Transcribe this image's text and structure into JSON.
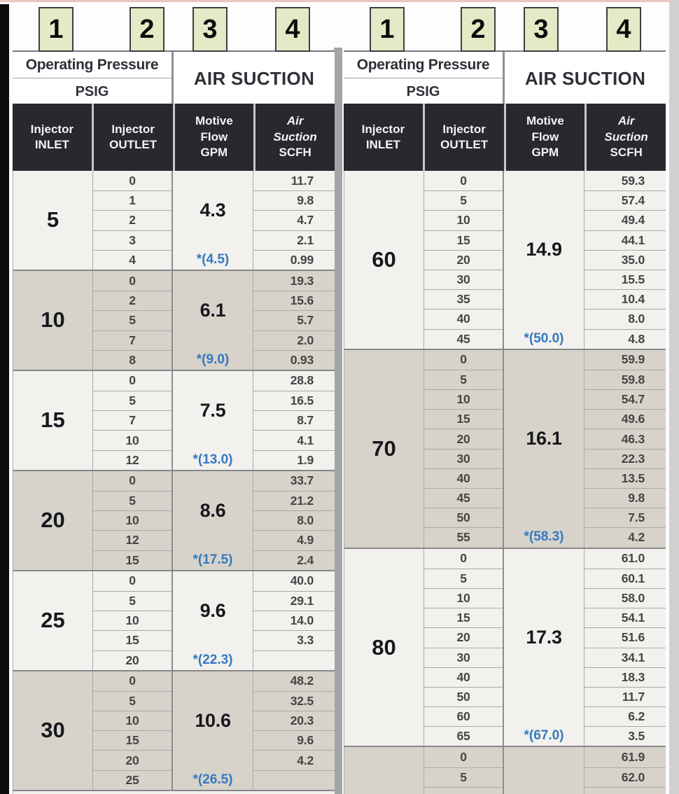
{
  "colors": {
    "badge_bg": "#e3eac6",
    "badge_border": "#3d3f45",
    "dark_header_bg": "#27292f",
    "starred_value_blue": "#3579bf",
    "group_shade_light": "#f2f1ee",
    "group_shade_dark": "#d7d3cb",
    "divider_gray": "#a2a4a7"
  },
  "tables": [
    {
      "id": "left",
      "badges": [
        "1",
        "2",
        "3",
        "4"
      ],
      "header": {
        "operating_pressure": "Operating Pressure",
        "psig": "PSIG",
        "air_suction": "AIR SUCTION",
        "columns": [
          {
            "lines": [
              {
                "t": "Injector",
                "i": false
              },
              {
                "t": "INLET",
                "i": false
              }
            ]
          },
          {
            "lines": [
              {
                "t": "Injector",
                "i": false
              },
              {
                "t": "OUTLET",
                "i": false
              }
            ]
          },
          {
            "lines": [
              {
                "t": "Motive",
                "i": false
              },
              {
                "t": "Flow",
                "i": false
              },
              {
                "t": "GPM",
                "i": false
              }
            ]
          },
          {
            "lines": [
              {
                "t": "Air",
                "i": true
              },
              {
                "t": "Suction",
                "i": true
              },
              {
                "t": "SCFH",
                "i": false
              }
            ]
          }
        ]
      },
      "groups": [
        {
          "inlet": "5",
          "shade": "light",
          "motive_flow": "4.3",
          "max_flow": "*(4.5)",
          "rows": [
            {
              "outlet": "0",
              "scfh": "11.7"
            },
            {
              "outlet": "1",
              "scfh": "9.8"
            },
            {
              "outlet": "2",
              "scfh": "4.7"
            },
            {
              "outlet": "3",
              "scfh": "2.1"
            },
            {
              "outlet": "4",
              "scfh": "0.99"
            }
          ]
        },
        {
          "inlet": "10",
          "shade": "dark",
          "motive_flow": "6.1",
          "max_flow": "*(9.0)",
          "rows": [
            {
              "outlet": "0",
              "scfh": "19.3"
            },
            {
              "outlet": "2",
              "scfh": "15.6"
            },
            {
              "outlet": "5",
              "scfh": "5.7"
            },
            {
              "outlet": "7",
              "scfh": "2.0"
            },
            {
              "outlet": "8",
              "scfh": "0.93"
            }
          ]
        },
        {
          "inlet": "15",
          "shade": "light",
          "motive_flow": "7.5",
          "max_flow": "*(13.0)",
          "rows": [
            {
              "outlet": "0",
              "scfh": "28.8"
            },
            {
              "outlet": "5",
              "scfh": "16.5"
            },
            {
              "outlet": "7",
              "scfh": "8.7"
            },
            {
              "outlet": "10",
              "scfh": "4.1"
            },
            {
              "outlet": "12",
              "scfh": "1.9"
            }
          ]
        },
        {
          "inlet": "20",
          "shade": "dark",
          "motive_flow": "8.6",
          "max_flow": "*(17.5)",
          "rows": [
            {
              "outlet": "0",
              "scfh": "33.7"
            },
            {
              "outlet": "5",
              "scfh": "21.2"
            },
            {
              "outlet": "10",
              "scfh": "8.0"
            },
            {
              "outlet": "12",
              "scfh": "4.9"
            },
            {
              "outlet": "15",
              "scfh": "2.4"
            }
          ]
        },
        {
          "inlet": "25",
          "shade": "light",
          "motive_flow": "9.6",
          "max_flow": "*(22.3)",
          "rows": [
            {
              "outlet": "0",
              "scfh": "40.0"
            },
            {
              "outlet": "5",
              "scfh": "29.1"
            },
            {
              "outlet": "10",
              "scfh": "14.0"
            },
            {
              "outlet": "15",
              "scfh": "3.3"
            },
            {
              "outlet": "20",
              "scfh": ""
            }
          ]
        },
        {
          "inlet": "30",
          "shade": "dark",
          "motive_flow": "10.6",
          "max_flow": "*(26.5)",
          "rows": [
            {
              "outlet": "0",
              "scfh": "48.2"
            },
            {
              "outlet": "5",
              "scfh": "32.5"
            },
            {
              "outlet": "10",
              "scfh": "20.3"
            },
            {
              "outlet": "15",
              "scfh": "9.6"
            },
            {
              "outlet": "20",
              "scfh": "4.2"
            },
            {
              "outlet": "25",
              "scfh": ""
            }
          ]
        }
      ],
      "bottom_sliver": "light"
    },
    {
      "id": "right",
      "badges": [
        "1",
        "2",
        "3",
        "4"
      ],
      "header": {
        "operating_pressure": "Operating Pressure",
        "psig": "PSIG",
        "air_suction": "AIR SUCTION",
        "columns": [
          {
            "lines": [
              {
                "t": "Injector",
                "i": false
              },
              {
                "t": "INLET",
                "i": false
              }
            ]
          },
          {
            "lines": [
              {
                "t": "Injector",
                "i": false
              },
              {
                "t": "OUTLET",
                "i": false
              }
            ]
          },
          {
            "lines": [
              {
                "t": "Motive",
                "i": false
              },
              {
                "t": "Flow",
                "i": false
              },
              {
                "t": "GPM",
                "i": false
              }
            ]
          },
          {
            "lines": [
              {
                "t": "Air",
                "i": true
              },
              {
                "t": "Suction",
                "i": true
              },
              {
                "t": "SCFH",
                "i": false
              }
            ]
          }
        ]
      },
      "groups": [
        {
          "inlet": "60",
          "shade": "light",
          "motive_flow": "14.9",
          "max_flow": "*(50.0)",
          "rows": [
            {
              "outlet": "0",
              "scfh": "59.3"
            },
            {
              "outlet": "5",
              "scfh": "57.4"
            },
            {
              "outlet": "10",
              "scfh": "49.4"
            },
            {
              "outlet": "15",
              "scfh": "44.1"
            },
            {
              "outlet": "20",
              "scfh": "35.0"
            },
            {
              "outlet": "30",
              "scfh": "15.5"
            },
            {
              "outlet": "35",
              "scfh": "10.4"
            },
            {
              "outlet": "40",
              "scfh": "8.0"
            },
            {
              "outlet": "45",
              "scfh": "4.8"
            }
          ]
        },
        {
          "inlet": "70",
          "shade": "dark",
          "motive_flow": "16.1",
          "max_flow": "*(58.3)",
          "rows": [
            {
              "outlet": "0",
              "scfh": "59.9"
            },
            {
              "outlet": "5",
              "scfh": "59.8"
            },
            {
              "outlet": "10",
              "scfh": "54.7"
            },
            {
              "outlet": "15",
              "scfh": "49.6"
            },
            {
              "outlet": "20",
              "scfh": "46.3"
            },
            {
              "outlet": "30",
              "scfh": "22.3"
            },
            {
              "outlet": "40",
              "scfh": "13.5"
            },
            {
              "outlet": "45",
              "scfh": "9.8"
            },
            {
              "outlet": "50",
              "scfh": "7.5"
            },
            {
              "outlet": "55",
              "scfh": "4.2"
            }
          ]
        },
        {
          "inlet": "80",
          "shade": "light",
          "motive_flow": "17.3",
          "max_flow": "*(67.0)",
          "rows": [
            {
              "outlet": "0",
              "scfh": "61.0"
            },
            {
              "outlet": "5",
              "scfh": "60.1"
            },
            {
              "outlet": "10",
              "scfh": "58.0"
            },
            {
              "outlet": "15",
              "scfh": "54.1"
            },
            {
              "outlet": "20",
              "scfh": "51.6"
            },
            {
              "outlet": "30",
              "scfh": "34.1"
            },
            {
              "outlet": "40",
              "scfh": "18.3"
            },
            {
              "outlet": "50",
              "scfh": "11.7"
            },
            {
              "outlet": "60",
              "scfh": "6.2"
            },
            {
              "outlet": "65",
              "scfh": "3.5"
            }
          ]
        },
        {
          "inlet": "",
          "shade": "dark",
          "motive_flow": "",
          "max_flow": "",
          "cut": true,
          "rows": [
            {
              "outlet": "0",
              "scfh": "61.9"
            },
            {
              "outlet": "5",
              "scfh": "62.0"
            }
          ]
        }
      ]
    }
  ]
}
